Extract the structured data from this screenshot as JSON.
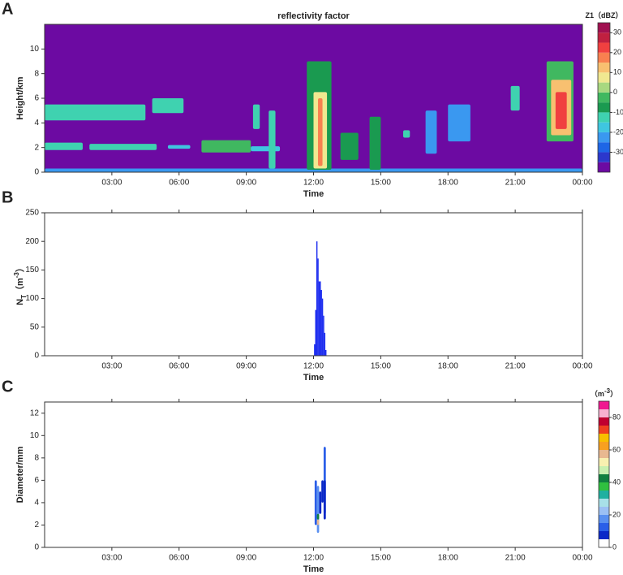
{
  "chart_data": [
    {
      "type": "heatmap",
      "panel_label": "A",
      "title": "reflectivity factor",
      "xlabel": "Time",
      "ylabel": [
        "Height/km"
      ],
      "ylabel_style": [
        "normal"
      ],
      "background": "#6c0aa2",
      "xlim": [
        0,
        24
      ],
      "xticks": [
        {
          "value": 3,
          "label": "03:00"
        },
        {
          "value": 6,
          "label": "06:00"
        },
        {
          "value": 9,
          "label": "09:00"
        },
        {
          "value": 12,
          "label": "12:00"
        },
        {
          "value": 15,
          "label": "15:00"
        },
        {
          "value": 18,
          "label": "18:00"
        },
        {
          "value": 21,
          "label": "21:00"
        },
        {
          "value": 24,
          "label": "00:00"
        }
      ],
      "ylim": [
        0,
        12
      ],
      "yticks": [
        0,
        2,
        4,
        6,
        8,
        10
      ],
      "top_ticks": false,
      "cells": [
        [
          0,
          24,
          0,
          0.3,
          -25
        ],
        [
          0,
          4.5,
          4.2,
          5.5,
          -12
        ],
        [
          4.8,
          6.2,
          4.8,
          6.0,
          -12
        ],
        [
          0,
          1.7,
          1.8,
          2.4,
          -15
        ],
        [
          2,
          5,
          1.8,
          2.3,
          -12
        ],
        [
          5.5,
          6.5,
          1.9,
          2.2,
          -20
        ],
        [
          7,
          9.2,
          1.6,
          2.6,
          -5
        ],
        [
          9.2,
          10.5,
          1.7,
          2.1,
          -20
        ],
        [
          9.3,
          9.6,
          3.5,
          5.5,
          -15
        ],
        [
          10,
          10.3,
          0.3,
          5,
          -15
        ],
        [
          11.7,
          12.8,
          0.2,
          9,
          -10
        ],
        [
          12,
          12.6,
          0.3,
          6.5,
          5
        ],
        [
          12.2,
          12.4,
          0.5,
          6,
          15
        ],
        [
          13.2,
          14,
          1,
          3.2,
          -10
        ],
        [
          14.5,
          15,
          0.2,
          4.5,
          -10
        ],
        [
          16,
          16.3,
          2.8,
          3.4,
          -15
        ],
        [
          17,
          17.5,
          1.5,
          5,
          -22
        ],
        [
          18,
          19,
          2.5,
          5.5,
          -25
        ],
        [
          20.8,
          21.2,
          5,
          7,
          -15
        ],
        [
          22.4,
          23.6,
          2.5,
          9,
          -5
        ],
        [
          22.6,
          23.5,
          3,
          7.5,
          10
        ],
        [
          22.8,
          23.3,
          3.5,
          6.5,
          20
        ]
      ],
      "colorbar": {
        "label": [
          "Z1（dBZ）"
        ],
        "label_style": [
          "normal"
        ],
        "lim": [
          -40,
          35
        ],
        "ticks": [
          -30,
          -20,
          -10,
          0,
          10,
          20,
          30
        ],
        "levels": [
          -40,
          -35,
          -30,
          -25,
          -20,
          -15,
          -10,
          -5,
          0,
          5,
          10,
          15,
          20,
          25,
          30,
          35
        ],
        "colors": [
          "#6c0aa2",
          "#2c38cc",
          "#1e66e6",
          "#3a98f0",
          "#3fc6e0",
          "#3fd2b0",
          "#1a9a50",
          "#40b860",
          "#a8d880",
          "#f0e890",
          "#f8c070",
          "#f88050",
          "#f04040",
          "#c02040",
          "#a01050"
        ]
      }
    },
    {
      "type": "bar",
      "panel_label": "B",
      "xlabel": "Time",
      "ylabel": [
        "N",
        "T",
        "（m",
        "-3",
        "）"
      ],
      "ylabel_style": [
        "normal",
        "sub",
        "normal",
        "super",
        "normal"
      ],
      "color": "#1f2ff0",
      "xlim": [
        0,
        24
      ],
      "xticks": [
        {
          "value": 3,
          "label": "03:00"
        },
        {
          "value": 6,
          "label": "06:00"
        },
        {
          "value": 9,
          "label": "09:00"
        },
        {
          "value": 12,
          "label": "12:00"
        },
        {
          "value": 15,
          "label": "15:00"
        },
        {
          "value": 18,
          "label": "18:00"
        },
        {
          "value": 21,
          "label": "21:00"
        },
        {
          "value": 24,
          "label": "00:00"
        }
      ],
      "ylim": [
        0,
        250
      ],
      "yticks": [
        0,
        50,
        100,
        150,
        200,
        250
      ],
      "top_ticks": true,
      "x": [
        12.05,
        12.1,
        12.15,
        12.2,
        12.25,
        12.3,
        12.35,
        12.4,
        12.45,
        12.5,
        12.55
      ],
      "values": [
        20,
        80,
        200,
        170,
        130,
        130,
        115,
        100,
        70,
        40,
        10
      ]
    },
    {
      "type": "heatmap",
      "panel_label": "C",
      "xlabel": "Time",
      "ylabel": [
        "Diameter/mm"
      ],
      "ylabel_style": [
        "normal"
      ],
      "background": "#ffffff",
      "xlim": [
        0,
        24
      ],
      "xticks": [
        {
          "value": 3,
          "label": "03:00"
        },
        {
          "value": 6,
          "label": "06:00"
        },
        {
          "value": 9,
          "label": "09:00"
        },
        {
          "value": 12,
          "label": "12:00"
        },
        {
          "value": 15,
          "label": "15:00"
        },
        {
          "value": 18,
          "label": "18:00"
        },
        {
          "value": 21,
          "label": "21:00"
        },
        {
          "value": 24,
          "label": "00:00"
        }
      ],
      "ylim": [
        0,
        13
      ],
      "yticks": [
        0,
        2,
        4,
        6,
        8,
        10,
        12
      ],
      "top_ticks": true,
      "cells": [
        [
          12.05,
          12.15,
          2,
          6,
          12
        ],
        [
          12.15,
          12.25,
          1.3,
          5.5,
          17
        ],
        [
          12.15,
          12.25,
          2,
          2.5,
          55
        ],
        [
          12.15,
          12.25,
          2.5,
          3,
          40
        ],
        [
          12.25,
          12.35,
          3,
          5,
          7
        ],
        [
          12.35,
          12.45,
          4,
          6,
          8
        ],
        [
          12.45,
          12.55,
          3,
          9,
          12
        ],
        [
          12.45,
          12.55,
          2.5,
          6,
          7
        ]
      ],
      "colorbar": {
        "label": [
          "（m",
          "-3",
          "）"
        ],
        "label_style": [
          "normal",
          "super",
          "normal"
        ],
        "lim": [
          0,
          90
        ],
        "ticks": [
          0,
          20,
          40,
          60,
          80
        ],
        "levels": [
          0,
          5,
          10,
          15,
          20,
          25,
          30,
          35,
          40,
          45,
          50,
          55,
          60,
          65,
          70,
          75,
          80,
          85,
          90
        ],
        "colors": [
          "#ffffff",
          "#0a28c8",
          "#2a5ee8",
          "#5a90f0",
          "#9cc0f4",
          "#a8e0e8",
          "#20b0a0",
          "#30c040",
          "#108040",
          "#c8f0b0",
          "#f8f0b0",
          "#e8b890",
          "#f8a020",
          "#f8c000",
          "#f04020",
          "#c00030",
          "#f8b0d0",
          "#f01890"
        ]
      }
    }
  ]
}
